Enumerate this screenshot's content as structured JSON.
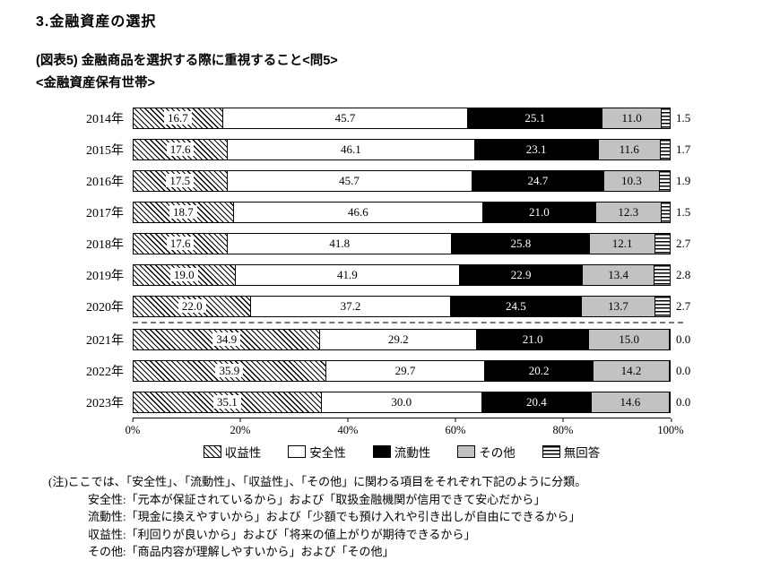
{
  "page": {
    "title": "3.金融資産の選択",
    "figure_caption": "(図表5) 金融商品を選択する際に重視すること<問5>",
    "subtitle": "<金融資産保有世帯>"
  },
  "chart_data": {
    "type": "bar",
    "orientation": "horizontal",
    "stacked": true,
    "unit": "%",
    "categories": [
      "2014年",
      "2015年",
      "2016年",
      "2017年",
      "2018年",
      "2019年",
      "2020年",
      "2021年",
      "2022年",
      "2023年"
    ],
    "series": [
      {
        "name": "収益性",
        "pattern": "diagonal-hatch",
        "values": [
          16.7,
          17.6,
          17.5,
          18.7,
          17.6,
          19.0,
          22.0,
          34.9,
          35.9,
          35.1
        ]
      },
      {
        "name": "安全性",
        "pattern": "white",
        "values": [
          45.7,
          46.1,
          45.7,
          46.6,
          41.8,
          41.9,
          37.2,
          29.2,
          29.7,
          30.0
        ]
      },
      {
        "name": "流動性",
        "pattern": "black",
        "values": [
          25.1,
          23.1,
          24.7,
          21.0,
          25.8,
          22.9,
          24.5,
          21.0,
          20.2,
          20.4
        ]
      },
      {
        "name": "その他",
        "pattern": "gray",
        "values": [
          11.0,
          11.6,
          10.3,
          12.3,
          12.1,
          13.4,
          13.7,
          15.0,
          14.2,
          14.6
        ]
      },
      {
        "name": "無回答",
        "pattern": "horizontal-lines",
        "values": [
          1.5,
          1.7,
          1.9,
          1.5,
          2.7,
          2.8,
          2.7,
          0.0,
          0.0,
          0.0
        ]
      }
    ],
    "x_ticks": [
      "0%",
      "20%",
      "40%",
      "60%",
      "80%",
      "100%"
    ],
    "xlim": [
      0,
      100
    ],
    "grid": false,
    "legend_position": "bottom",
    "separator_after_category": "2020年",
    "colors": {
      "black": "#000000",
      "white": "#ffffff",
      "gray": "#c2c2c2"
    }
  },
  "notes": [
    "(注)ここでは、「安全性」、「流動性」、「収益性」、「その他」に関わる項目をそれぞれ下記のように分類。",
    "安全性:「元本が保証されているから」および「取扱金融機関が信用できて安心だから」",
    "流動性:「現金に換えやすいから」および「少額でも預け入れや引き出しが自由にできるから」",
    "収益性:「利回りが良いから」および「将来の値上がりが期待できるから」",
    "その他:「商品内容が理解しやすいから」および「その他」"
  ]
}
